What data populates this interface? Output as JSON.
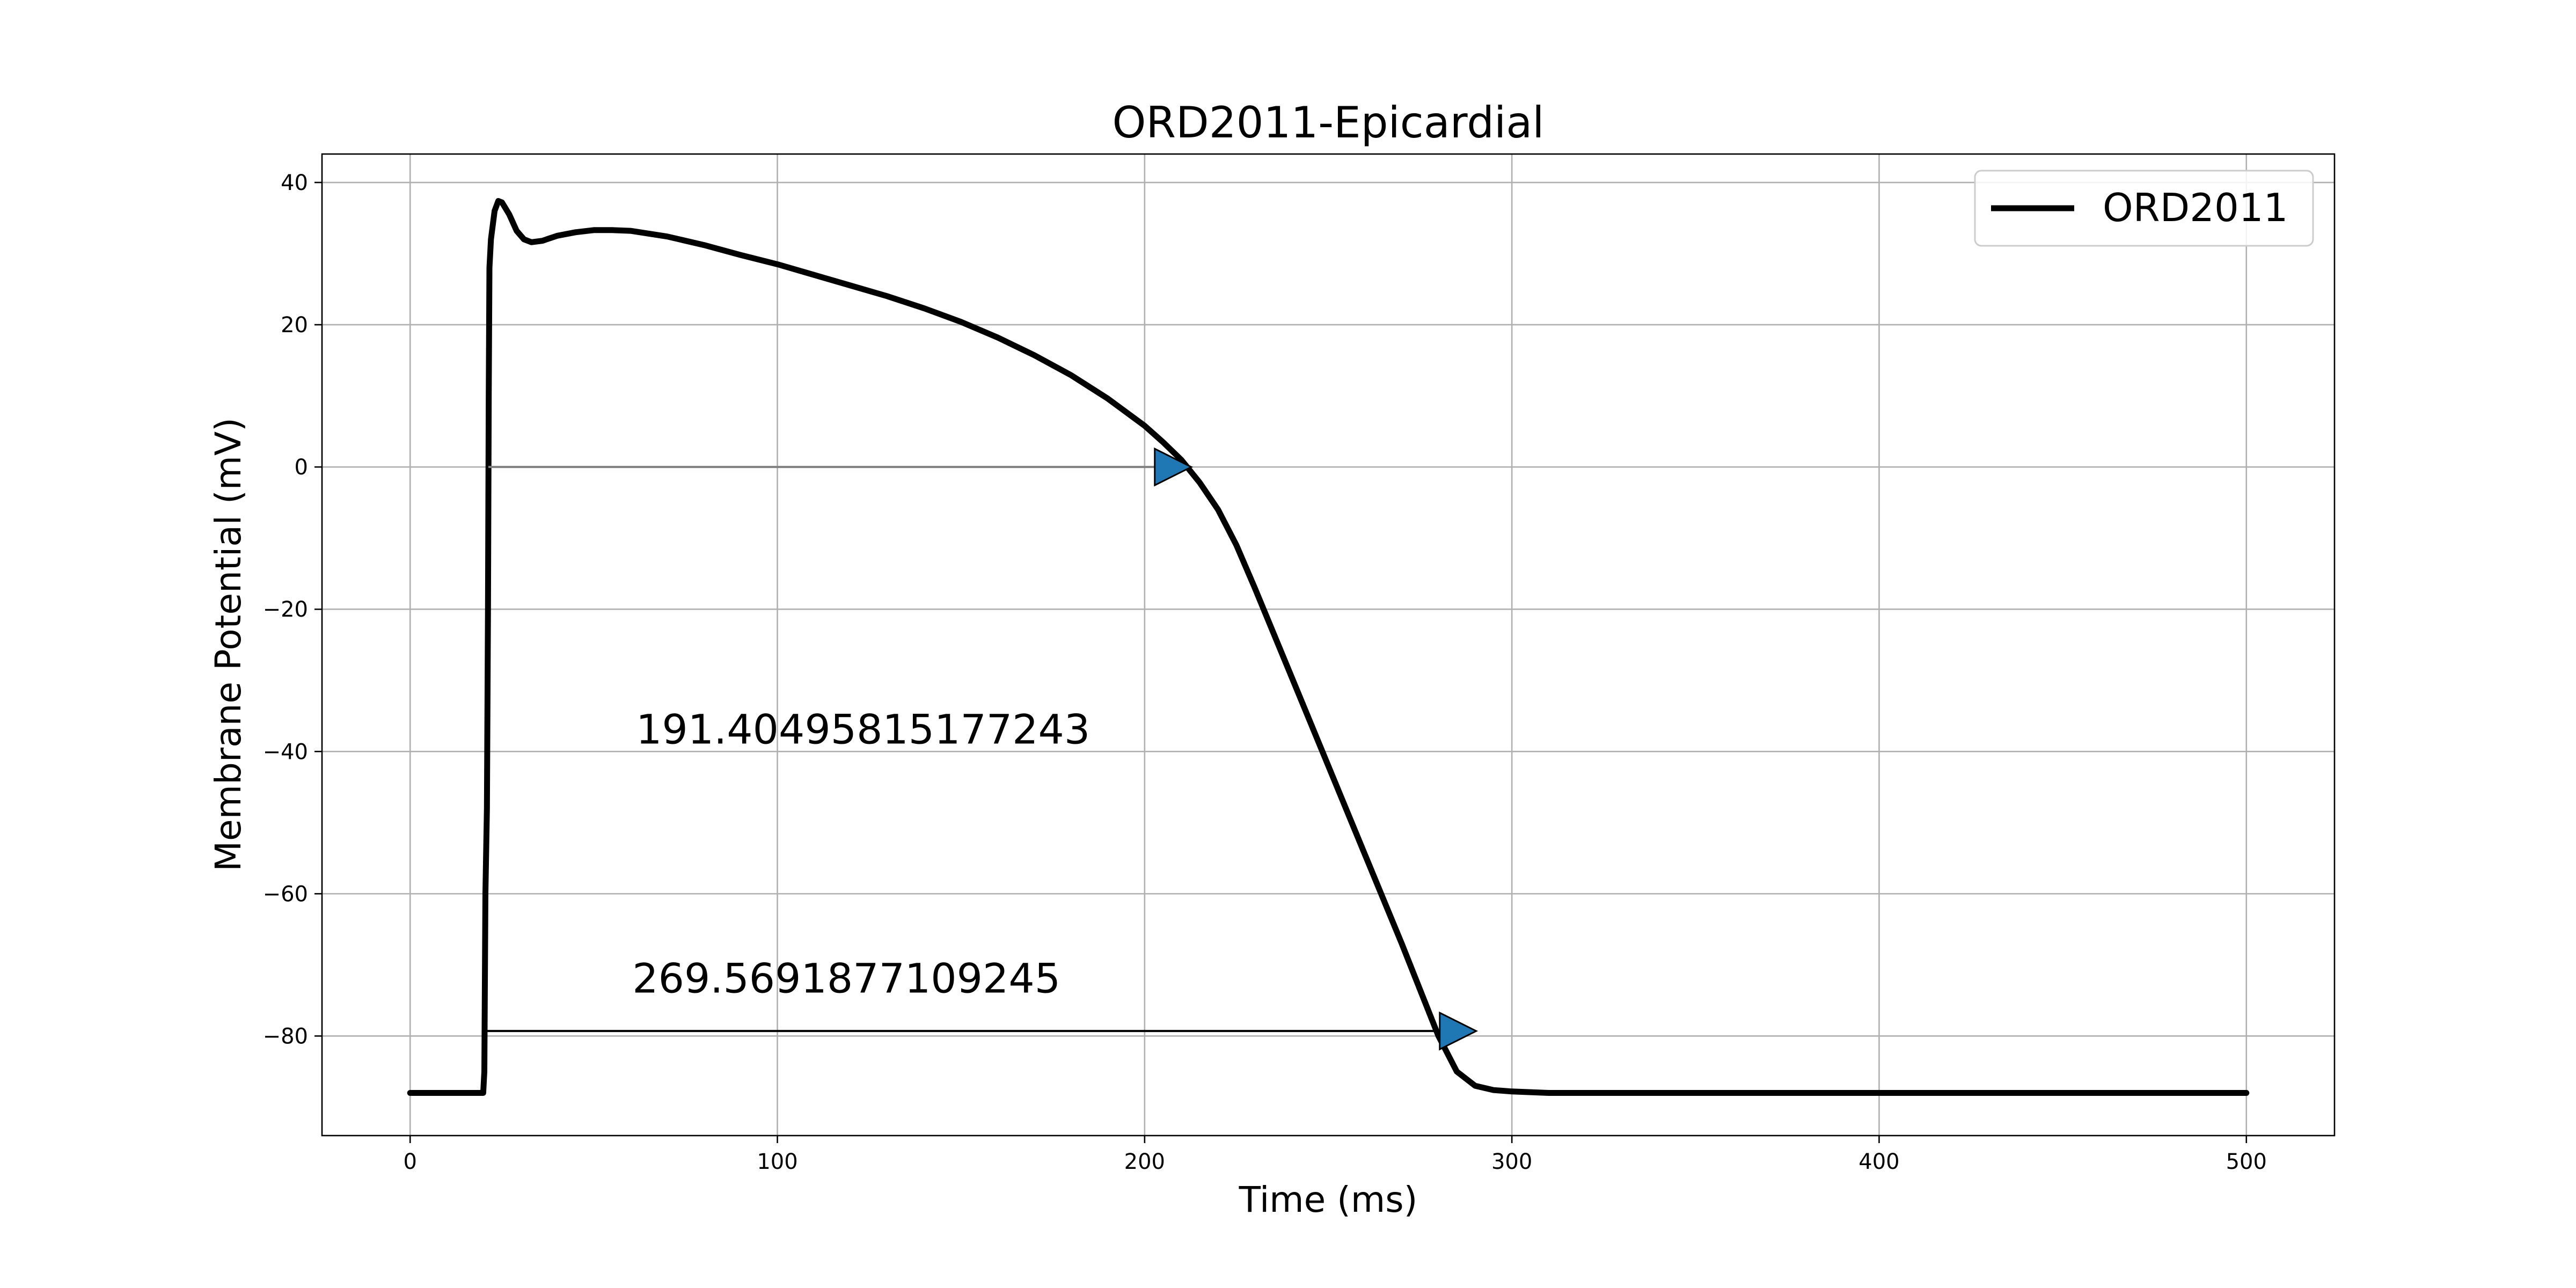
{
  "chart_data": {
    "type": "line",
    "title": "ORD2011-Epicardial",
    "xlabel": "Time (ms)",
    "ylabel": "Membrane Potential (mV)",
    "xlim": [
      -24,
      524
    ],
    "ylim": [
      -94,
      44
    ],
    "xticks": [
      0,
      100,
      200,
      300,
      400,
      500
    ],
    "yticks": [
      -80,
      -60,
      -40,
      -20,
      0,
      20,
      40
    ],
    "grid": true,
    "legend": {
      "position": "top-right",
      "entries": [
        "ORD2011"
      ]
    },
    "series": [
      {
        "name": "ORD2011",
        "color": "#000000",
        "points": [
          [
            0,
            -88
          ],
          [
            19.9,
            -88
          ],
          [
            20.2,
            -85
          ],
          [
            20.5,
            -60
          ],
          [
            20.9,
            -48
          ],
          [
            21.2,
            -20
          ],
          [
            21.4,
            10
          ],
          [
            21.6,
            28
          ],
          [
            22,
            32
          ],
          [
            23,
            36
          ],
          [
            24,
            37.4
          ],
          [
            25,
            37.2
          ],
          [
            27,
            35.5
          ],
          [
            29,
            33.2
          ],
          [
            31,
            32
          ],
          [
            33,
            31.6
          ],
          [
            36,
            31.8
          ],
          [
            40,
            32.5
          ],
          [
            45,
            33
          ],
          [
            50,
            33.3
          ],
          [
            55,
            33.3
          ],
          [
            60,
            33.2
          ],
          [
            70,
            32.4
          ],
          [
            80,
            31.2
          ],
          [
            90,
            29.8
          ],
          [
            100,
            28.5
          ],
          [
            110,
            27
          ],
          [
            120,
            25.5
          ],
          [
            130,
            24
          ],
          [
            140,
            22.3
          ],
          [
            150,
            20.4
          ],
          [
            160,
            18.2
          ],
          [
            170,
            15.7
          ],
          [
            180,
            12.9
          ],
          [
            190,
            9.6
          ],
          [
            200,
            5.8
          ],
          [
            205,
            3.5
          ],
          [
            210,
            1
          ],
          [
            215,
            -2.2
          ],
          [
            220,
            -6
          ],
          [
            225,
            -11
          ],
          [
            230,
            -17
          ],
          [
            240,
            -29.5
          ],
          [
            250,
            -42
          ],
          [
            260,
            -54.5
          ],
          [
            270,
            -67
          ],
          [
            275,
            -73.5
          ],
          [
            280,
            -80
          ],
          [
            285,
            -85
          ],
          [
            290,
            -87
          ],
          [
            295,
            -87.6
          ],
          [
            300,
            -87.8
          ],
          [
            310,
            -88
          ],
          [
            350,
            -88
          ],
          [
            400,
            -88
          ],
          [
            450,
            -88
          ],
          [
            500,
            -88
          ]
        ]
      }
    ],
    "annotations": [
      {
        "text": "191.40495815177243",
        "x": 61.5,
        "y": -38.9,
        "arrow_from": [
          21.3,
          0
        ],
        "arrow_to": [
          212.7,
          0
        ],
        "arrow_color": "#808080",
        "head_color": "#1f77b4"
      },
      {
        "text": "269.5691877109245",
        "x": 60.5,
        "y": -73.9,
        "arrow_from": [
          20.8,
          -79.3
        ],
        "arrow_to": [
          290.3,
          -79.3
        ],
        "arrow_color": "#000000",
        "head_color": "#1f77b4"
      }
    ]
  }
}
